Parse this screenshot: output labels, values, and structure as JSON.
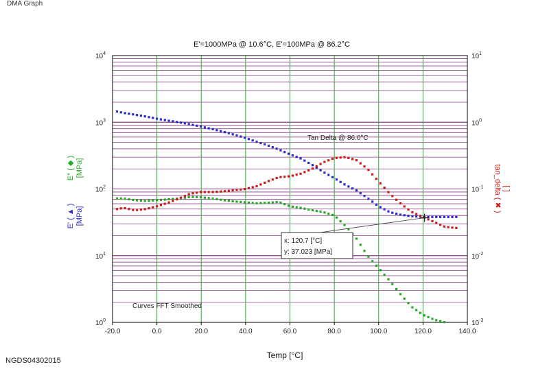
{
  "page": {
    "header": "DMA Graph",
    "footer": "NGDS04302015"
  },
  "colors": {
    "storage_modulus": "#2a2ad0",
    "loss_modulus": "#22aa22",
    "tan_delta": "#d01818",
    "minor_grid": "#8a3f8a",
    "vertical_grid": "#2eaa2e",
    "axis": "#000000",
    "background": "#ffffff"
  },
  "chart_data": {
    "type": "scatter",
    "title": "E'=1000MPa @ 10.6°C, E'=100MPa @ 86.2°C",
    "xlabel": "Temp [°C]",
    "xlim": [
      -20,
      140
    ],
    "x_ticks": [
      "-20.0",
      "0.0",
      "20.0",
      "40.0",
      "60.0",
      "80.0",
      "100.0",
      "120.0",
      "140.0"
    ],
    "y_left": {
      "scale": "log",
      "lim": [
        1,
        10000
      ],
      "tick_bases": [
        "10",
        "10",
        "10",
        "10",
        "10"
      ],
      "tick_exps": [
        "0",
        "1",
        "2",
        "3",
        "4"
      ],
      "label_upper": {
        "text": "E\" ( ◆ )",
        "unit": "[MPa]"
      },
      "label_lower": {
        "text": "E' ( ▲ )",
        "unit": "[MPa]"
      }
    },
    "y_right": {
      "scale": "log",
      "lim": [
        0.001,
        10
      ],
      "tick_bases": [
        "10",
        "10",
        "10",
        "10",
        "10"
      ],
      "tick_exps": [
        "-3",
        "-2",
        "-1",
        "0",
        "1"
      ],
      "label": {
        "text": "tan_delta ( ✖ )",
        "unit": "[ ]"
      }
    },
    "grid": {
      "minor_horizontal": true,
      "vertical": true
    },
    "series": [
      {
        "key": "storage_modulus",
        "axis": "left",
        "x": [
          -18,
          -15,
          -10,
          -5,
          0,
          5,
          10,
          15,
          20,
          25,
          30,
          35,
          40,
          45,
          50,
          55,
          60,
          65,
          70,
          75,
          80,
          85,
          90,
          95,
          100,
          105,
          110,
          115,
          120,
          125,
          130,
          135
        ],
        "y": [
          1450,
          1380,
          1300,
          1220,
          1130,
          1060,
          1000,
          930,
          860,
          790,
          720,
          650,
          580,
          510,
          450,
          390,
          330,
          285,
          230,
          180,
          145,
          115,
          95,
          73,
          55,
          45,
          41,
          39,
          38,
          38,
          38,
          38
        ]
      },
      {
        "key": "loss_modulus",
        "axis": "left",
        "x": [
          -18,
          -15,
          -10,
          -5,
          0,
          5,
          10,
          15,
          20,
          25,
          30,
          35,
          40,
          45,
          50,
          55,
          60,
          65,
          70,
          75,
          80,
          85,
          90,
          95,
          100,
          105,
          110,
          115,
          120,
          125,
          130,
          133
        ],
        "y": [
          72,
          72,
          68,
          66,
          68,
          70,
          72,
          76,
          75,
          72,
          68,
          65,
          63,
          61,
          62,
          64,
          55,
          52,
          48,
          45,
          40,
          28,
          18,
          10,
          6.5,
          4.2,
          2.6,
          1.7,
          1.3,
          1.1,
          1.0,
          0.95
        ]
      },
      {
        "key": "tan_delta",
        "axis": "right",
        "x": [
          -18,
          -15,
          -10,
          -5,
          0,
          5,
          10,
          15,
          20,
          25,
          30,
          35,
          40,
          45,
          50,
          55,
          60,
          65,
          70,
          75,
          80,
          85,
          90,
          95,
          100,
          105,
          110,
          115,
          120,
          125,
          130,
          135
        ],
        "y": [
          0.05,
          0.052,
          0.048,
          0.05,
          0.055,
          0.062,
          0.072,
          0.085,
          0.09,
          0.09,
          0.092,
          0.096,
          0.1,
          0.11,
          0.13,
          0.15,
          0.155,
          0.17,
          0.2,
          0.25,
          0.29,
          0.3,
          0.27,
          0.2,
          0.13,
          0.085,
          0.06,
          0.045,
          0.038,
          0.032,
          0.027,
          0.026
        ]
      }
    ],
    "annotations": {
      "peak_label": "Tan Delta @ 86.0°C",
      "smoothing_note": "Curves FFT Smoothed",
      "cursor": {
        "x": 120.7,
        "y": 37.023,
        "line1": "x: 120.7 [°C]",
        "line2": "y: 37.023 [MPa]"
      }
    }
  }
}
